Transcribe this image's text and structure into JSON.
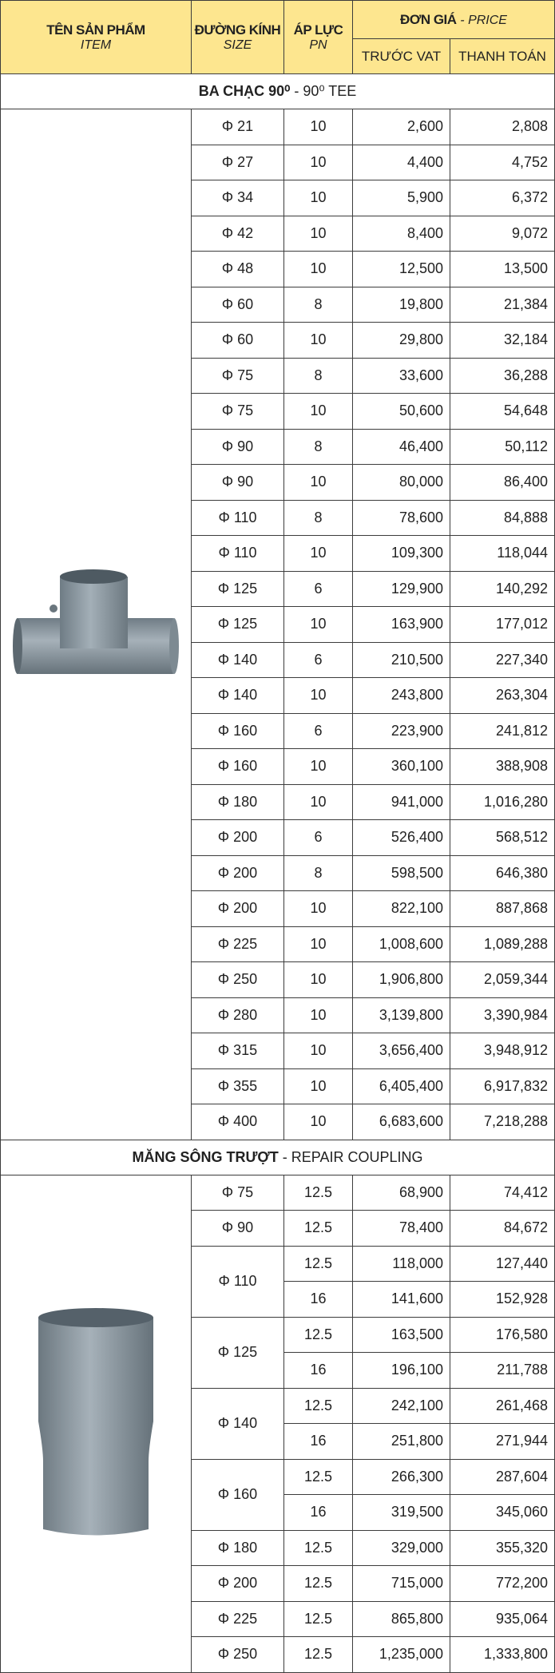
{
  "header": {
    "item_title": "TÊN SẢN PHẨM",
    "item_sub": "ITEM",
    "size_title": "ĐƯỜNG KÍNH",
    "size_sub": "SIZE",
    "pn_title": "ÁP LỰC",
    "pn_sub": "PN",
    "price_title": "ĐƠN GIÁ",
    "price_sub": "- PRICE",
    "before_vat": "TRƯỚC VAT",
    "total": "THANH TOÁN"
  },
  "sections": [
    {
      "title_bold": "BA CHẠC 90⁰",
      "title_rest": "- 90⁰ TEE",
      "groups": [
        {
          "size": "Φ 21",
          "rows": [
            {
              "pn": "10",
              "before_vat": "2,600",
              "total": "2,808"
            }
          ]
        },
        {
          "size": "Φ 27",
          "rows": [
            {
              "pn": "10",
              "before_vat": "4,400",
              "total": "4,752"
            }
          ]
        },
        {
          "size": "Φ 34",
          "rows": [
            {
              "pn": "10",
              "before_vat": "5,900",
              "total": "6,372"
            }
          ]
        },
        {
          "size": "Φ 42",
          "rows": [
            {
              "pn": "10",
              "before_vat": "8,400",
              "total": "9,072"
            }
          ]
        },
        {
          "size": "Φ 48",
          "rows": [
            {
              "pn": "10",
              "before_vat": "12,500",
              "total": "13,500"
            }
          ]
        },
        {
          "size": "Φ 60",
          "rows": [
            {
              "pn": "8",
              "before_vat": "19,800",
              "total": "21,384"
            }
          ]
        },
        {
          "size": "Φ 60",
          "rows": [
            {
              "pn": "10",
              "before_vat": "29,800",
              "total": "32,184"
            }
          ]
        },
        {
          "size": "Φ 75",
          "rows": [
            {
              "pn": "8",
              "before_vat": "33,600",
              "total": "36,288"
            }
          ]
        },
        {
          "size": "Φ 75",
          "rows": [
            {
              "pn": "10",
              "before_vat": "50,600",
              "total": "54,648"
            }
          ]
        },
        {
          "size": "Φ 90",
          "rows": [
            {
              "pn": "8",
              "before_vat": "46,400",
              "total": "50,112"
            }
          ]
        },
        {
          "size": "Φ 90",
          "rows": [
            {
              "pn": "10",
              "before_vat": "80,000",
              "total": "86,400"
            }
          ]
        },
        {
          "size": "Φ 110",
          "rows": [
            {
              "pn": "8",
              "before_vat": "78,600",
              "total": "84,888"
            }
          ]
        },
        {
          "size": "Φ 110",
          "rows": [
            {
              "pn": "10",
              "before_vat": "109,300",
              "total": "118,044"
            }
          ]
        },
        {
          "size": "Φ 125",
          "rows": [
            {
              "pn": "6",
              "before_vat": "129,900",
              "total": "140,292"
            }
          ]
        },
        {
          "size": "Φ 125",
          "rows": [
            {
              "pn": "10",
              "before_vat": "163,900",
              "total": "177,012"
            }
          ]
        },
        {
          "size": "Φ 140",
          "rows": [
            {
              "pn": "6",
              "before_vat": "210,500",
              "total": "227,340"
            }
          ]
        },
        {
          "size": "Φ 140",
          "rows": [
            {
              "pn": "10",
              "before_vat": "243,800",
              "total": "263,304"
            }
          ]
        },
        {
          "size": "Φ 160",
          "rows": [
            {
              "pn": "6",
              "before_vat": "223,900",
              "total": "241,812"
            }
          ]
        },
        {
          "size": "Φ 160",
          "rows": [
            {
              "pn": "10",
              "before_vat": "360,100",
              "total": "388,908"
            }
          ]
        },
        {
          "size": "Φ 180",
          "rows": [
            {
              "pn": "10",
              "before_vat": "941,000",
              "total": "1,016,280"
            }
          ]
        },
        {
          "size": "Φ 200",
          "rows": [
            {
              "pn": "6",
              "before_vat": "526,400",
              "total": "568,512"
            }
          ]
        },
        {
          "size": "Φ 200",
          "rows": [
            {
              "pn": "8",
              "before_vat": "598,500",
              "total": "646,380"
            }
          ]
        },
        {
          "size": "Φ 200",
          "rows": [
            {
              "pn": "10",
              "before_vat": "822,100",
              "total": "887,868"
            }
          ]
        },
        {
          "size": "Φ 225",
          "rows": [
            {
              "pn": "10",
              "before_vat": "1,008,600",
              "total": "1,089,288"
            }
          ]
        },
        {
          "size": "Φ 250",
          "rows": [
            {
              "pn": "10",
              "before_vat": "1,906,800",
              "total": "2,059,344"
            }
          ]
        },
        {
          "size": "Φ 280",
          "rows": [
            {
              "pn": "10",
              "before_vat": "3,139,800",
              "total": "3,390,984"
            }
          ]
        },
        {
          "size": "Φ 315",
          "rows": [
            {
              "pn": "10",
              "before_vat": "3,656,400",
              "total": "3,948,912"
            }
          ]
        },
        {
          "size": "Φ 355",
          "rows": [
            {
              "pn": "10",
              "before_vat": "6,405,400",
              "total": "6,917,832"
            }
          ]
        },
        {
          "size": "Φ 400",
          "rows": [
            {
              "pn": "10",
              "before_vat": "6,683,600",
              "total": "7,218,288"
            }
          ]
        }
      ]
    },
    {
      "title_bold": "MĂNG SÔNG TRƯỢT",
      "title_rest": "- REPAIR COUPLING",
      "groups": [
        {
          "size": "Φ 75",
          "rows": [
            {
              "pn": "12.5",
              "before_vat": "68,900",
              "total": "74,412"
            }
          ]
        },
        {
          "size": "Φ 90",
          "rows": [
            {
              "pn": "12.5",
              "before_vat": "78,400",
              "total": "84,672"
            }
          ]
        },
        {
          "size": "Φ 110",
          "rows": [
            {
              "pn": "12.5",
              "before_vat": "118,000",
              "total": "127,440"
            },
            {
              "pn": "16",
              "before_vat": "141,600",
              "total": "152,928"
            }
          ]
        },
        {
          "size": "Φ 125",
          "rows": [
            {
              "pn": "12.5",
              "before_vat": "163,500",
              "total": "176,580"
            },
            {
              "pn": "16",
              "before_vat": "196,100",
              "total": "211,788"
            }
          ]
        },
        {
          "size": "Φ 140",
          "rows": [
            {
              "pn": "12.5",
              "before_vat": "242,100",
              "total": "261,468"
            },
            {
              "pn": "16",
              "before_vat": "251,800",
              "total": "271,944"
            }
          ]
        },
        {
          "size": "Φ 160",
          "rows": [
            {
              "pn": "12.5",
              "before_vat": "266,300",
              "total": "287,604"
            },
            {
              "pn": "16",
              "before_vat": "319,500",
              "total": "345,060"
            }
          ]
        },
        {
          "size": "Φ 180",
          "rows": [
            {
              "pn": "12.5",
              "before_vat": "329,000",
              "total": "355,320"
            }
          ]
        },
        {
          "size": "Φ 200",
          "rows": [
            {
              "pn": "12.5",
              "before_vat": "715,000",
              "total": "772,200"
            }
          ]
        },
        {
          "size": "Φ 225",
          "rows": [
            {
              "pn": "12.5",
              "before_vat": "865,800",
              "total": "935,064"
            }
          ]
        },
        {
          "size": "Φ 250",
          "rows": [
            {
              "pn": "12.5",
              "before_vat": "1,235,000",
              "total": "1,333,800"
            }
          ]
        }
      ]
    }
  ]
}
